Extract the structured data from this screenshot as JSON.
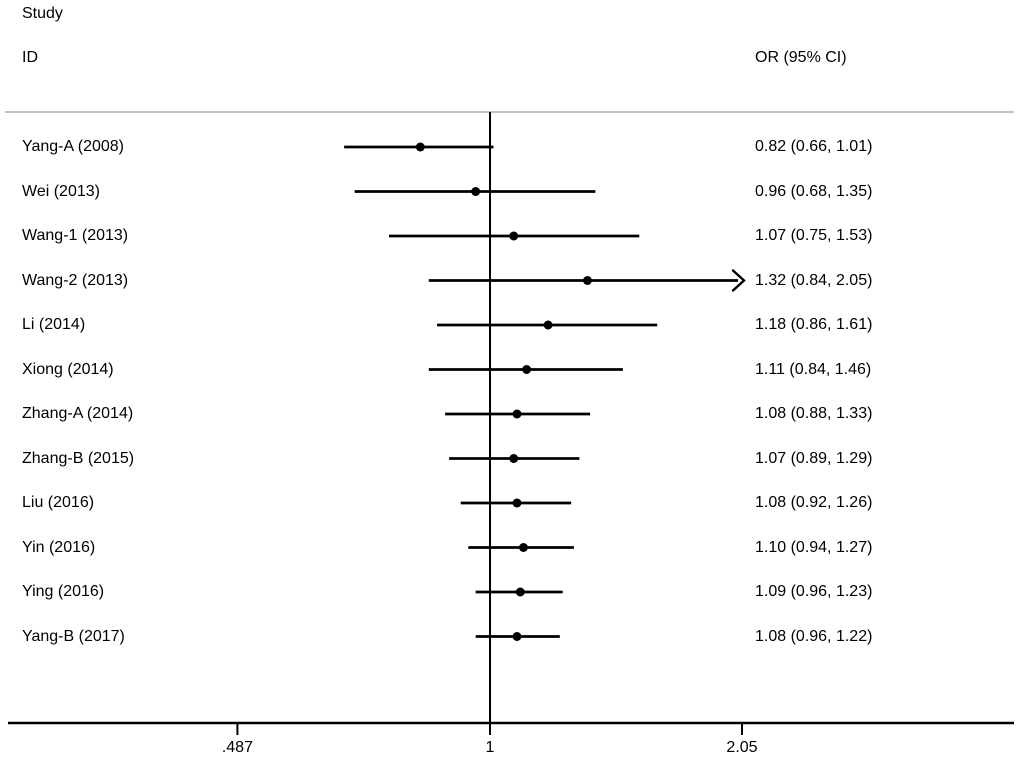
{
  "header": {
    "study_line1": "Study",
    "study_line2": "ID",
    "effect": "OR (95% CI)"
  },
  "colors": {
    "line": "#000000",
    "text": "#000000",
    "separator": "#c2c2c2",
    "background": "#ffffff"
  },
  "chart_data": {
    "type": "forest",
    "title": "",
    "xlabel": "",
    "ylabel": "",
    "effect_measure": "OR (95% CI)",
    "x_axis": {
      "scale": "log",
      "ref_line": 1,
      "ticks": [
        0.487,
        1,
        2.05
      ],
      "tick_labels": [
        ".487",
        "1",
        "2.05"
      ]
    },
    "studies": [
      {
        "label": "Yang-A (2008)",
        "or": 0.82,
        "ci_low": 0.66,
        "ci_high": 1.01,
        "display": "0.82 (0.66, 1.01)",
        "truncated_right": false
      },
      {
        "label": "Wei (2013)",
        "or": 0.96,
        "ci_low": 0.68,
        "ci_high": 1.35,
        "display": "0.96 (0.68, 1.35)",
        "truncated_right": false
      },
      {
        "label": "Wang-1 (2013)",
        "or": 1.07,
        "ci_low": 0.75,
        "ci_high": 1.53,
        "display": "1.07 (0.75, 1.53)",
        "truncated_right": false
      },
      {
        "label": "Wang-2 (2013)",
        "or": 1.32,
        "ci_low": 0.84,
        "ci_high": 2.05,
        "display": "1.32 (0.84, 2.05)",
        "truncated_right": true
      },
      {
        "label": "Li (2014)",
        "or": 1.18,
        "ci_low": 0.86,
        "ci_high": 1.61,
        "display": "1.18 (0.86, 1.61)",
        "truncated_right": false
      },
      {
        "label": "Xiong (2014)",
        "or": 1.11,
        "ci_low": 0.84,
        "ci_high": 1.46,
        "display": "1.11 (0.84, 1.46)",
        "truncated_right": false
      },
      {
        "label": "Zhang-A (2014)",
        "or": 1.08,
        "ci_low": 0.88,
        "ci_high": 1.33,
        "display": "1.08 (0.88, 1.33)",
        "truncated_right": false
      },
      {
        "label": "Zhang-B (2015)",
        "or": 1.07,
        "ci_low": 0.89,
        "ci_high": 1.29,
        "display": "1.07 (0.89, 1.29)",
        "truncated_right": false
      },
      {
        "label": "Liu (2016)",
        "or": 1.08,
        "ci_low": 0.92,
        "ci_high": 1.26,
        "display": "1.08 (0.92, 1.26)",
        "truncated_right": false
      },
      {
        "label": "Yin (2016)",
        "or": 1.1,
        "ci_low": 0.94,
        "ci_high": 1.27,
        "display": "1.10 (0.94, 1.27)",
        "truncated_right": false
      },
      {
        "label": "Ying (2016)",
        "or": 1.09,
        "ci_low": 0.96,
        "ci_high": 1.23,
        "display": "1.09 (0.96, 1.23)",
        "truncated_right": false
      },
      {
        "label": "Yang-B (2017)",
        "or": 1.08,
        "ci_low": 0.96,
        "ci_high": 1.22,
        "display": "1.08 (0.96, 1.22)",
        "truncated_right": false
      }
    ]
  }
}
